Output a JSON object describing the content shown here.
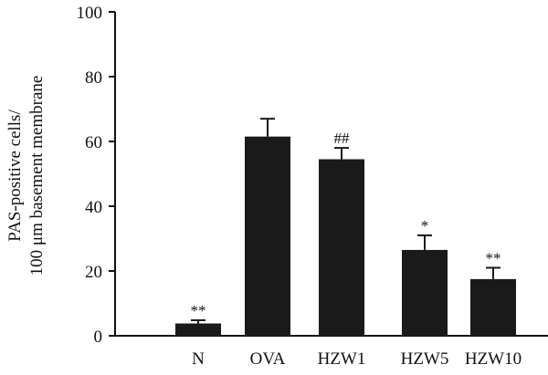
{
  "chart_data": {
    "type": "bar",
    "title": "",
    "xlabel": "",
    "ylabel_lines": [
      "PAS-positive cells/",
      "100 μm basement membrane"
    ],
    "categories": [
      "N",
      "OVA",
      "HZW1",
      "HZW5",
      "HZW10"
    ],
    "values": [
      3.8,
      61.5,
      54.5,
      26.5,
      17.5
    ],
    "errors": [
      1.0,
      5.5,
      3.5,
      4.5,
      3.5
    ],
    "significance": [
      "**",
      "",
      "##",
      "*",
      "**"
    ],
    "ylim": [
      0,
      100
    ],
    "yticks": [
      0,
      20,
      40,
      60,
      80,
      100
    ],
    "grid": false,
    "colors": {
      "bar": "#1a1a1a",
      "axis": "#111111"
    }
  }
}
